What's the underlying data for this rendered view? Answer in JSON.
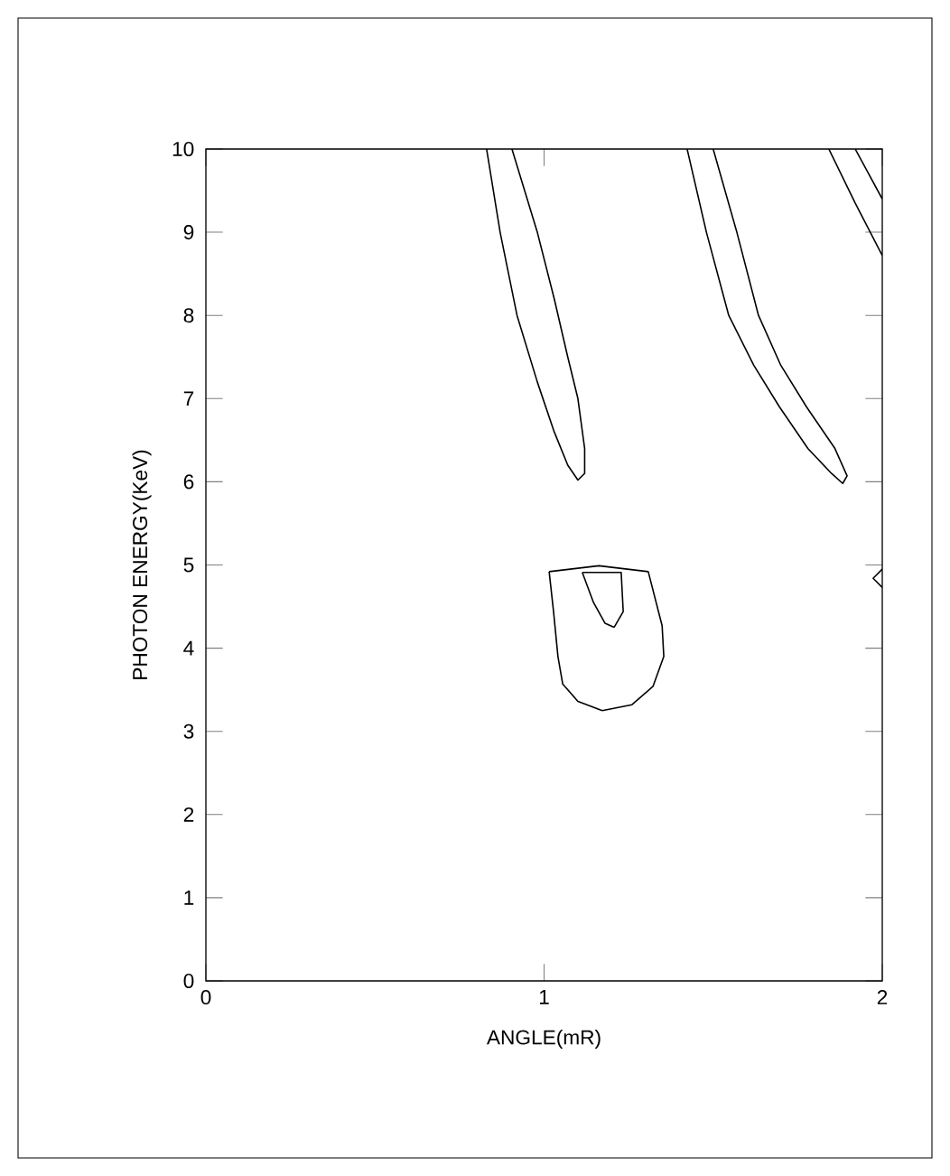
{
  "chart_data": {
    "type": "line",
    "xlabel": "ANGLE(mR)",
    "ylabel": "PHOTON ENERGY(KeV)",
    "xlim": [
      0,
      2
    ],
    "ylim": [
      0,
      10
    ],
    "xticks": [
      0,
      1,
      2
    ],
    "yticks": [
      0,
      1,
      2,
      3,
      4,
      5,
      6,
      7,
      8,
      9,
      10
    ],
    "grid": false,
    "marker": "none",
    "line_style": "solid",
    "series": [
      {
        "color": "#000000",
        "x": [
          0.83,
          0.87,
          0.92,
          0.98,
          1.03,
          1.07,
          1.1,
          1.12,
          1.12,
          1.1,
          1.07,
          1.03,
          0.98,
          0.905
        ],
        "values": [
          10,
          9,
          8,
          7.2,
          6.6,
          6.2,
          6.02,
          6.1,
          6.4,
          7.0,
          7.5,
          8.2,
          9,
          10
        ]
      },
      {
        "color": "#000000",
        "x": [
          1.423,
          1.48,
          1.546,
          1.62,
          1.696,
          1.78,
          1.85,
          1.883,
          1.896,
          1.86,
          1.776,
          1.7,
          1.634,
          1.57,
          1.5
        ],
        "values": [
          10,
          9,
          8,
          7.4,
          6.9,
          6.4,
          6.1,
          5.98,
          6.07,
          6.4,
          6.9,
          7.4,
          8.0,
          9,
          10
        ]
      },
      {
        "color": "#000000",
        "x": [
          1.842,
          1.92,
          2.0
        ],
        "values": [
          10,
          9.35,
          8.72
        ]
      },
      {
        "color": "#000000",
        "x": [
          1.92,
          1.96,
          2.0
        ],
        "values": [
          10,
          9.7,
          9.4
        ]
      },
      {
        "color": "#000000",
        "x": [
          2.0,
          1.973,
          2.0
        ],
        "values": [
          4.95,
          4.84,
          4.73
        ]
      },
      {
        "color": "#000000",
        "x": [
          1.015,
          1.162,
          1.308,
          1.349,
          1.354,
          1.322,
          1.26,
          1.172
        ],
        "values": [
          4.92,
          4.99,
          4.92,
          4.27,
          3.9,
          3.54,
          3.32,
          3.25
        ]
      },
      {
        "color": "#000000",
        "x": [
          1.172,
          1.1,
          1.055,
          1.041,
          1.028,
          1.015
        ],
        "values": [
          3.25,
          3.36,
          3.57,
          3.9,
          4.44,
          4.92
        ]
      },
      {
        "color": "#000000",
        "x": [
          1.113,
          1.228,
          1.234,
          1.207
        ],
        "values": [
          4.91,
          4.91,
          4.44,
          4.25
        ]
      },
      {
        "color": "#000000",
        "x": [
          1.207,
          1.18,
          1.146,
          1.113
        ],
        "values": [
          4.25,
          4.3,
          4.55,
          4.91
        ]
      }
    ]
  }
}
